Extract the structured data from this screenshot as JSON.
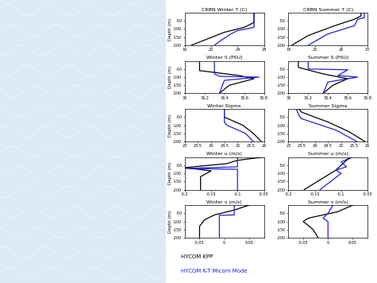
{
  "chart_data": [
    {
      "type": "line",
      "title": "CRBN Winter T (C)",
      "ylabel": "Depth (m)",
      "xlim": [
        16,
        28
      ],
      "xticks": [
        16,
        20,
        24,
        28
      ],
      "ylim": [
        -200,
        0
      ],
      "yticks": [
        -200,
        -150,
        -100,
        -50
      ],
      "series": [
        {
          "color": "#000000",
          "x": [
            26.5,
            26.5,
            25,
            22,
            19.5,
            17
          ],
          "y": [
            0,
            -60,
            -90,
            -120,
            -160,
            -200
          ]
        },
        {
          "color": "#2020e0",
          "x": [
            26.5,
            26.5,
            24,
            23,
            21.5,
            20.5
          ],
          "y": [
            0,
            -90,
            -110,
            -130,
            -170,
            -200
          ]
        }
      ]
    },
    {
      "type": "line",
      "title": "CRBN Summer T (C)",
      "xlim": [
        18,
        30
      ],
      "xticks": [
        18,
        22,
        26,
        30
      ],
      "ylim": [
        -200,
        0
      ],
      "yticks": [
        -200,
        -150,
        -100,
        -50
      ],
      "series": [
        {
          "color": "#000000",
          "x": [
            29,
            29,
            28,
            25,
            21,
            18.5
          ],
          "y": [
            0,
            -20,
            -40,
            -80,
            -140,
            -200
          ]
        },
        {
          "color": "#2020e0",
          "x": [
            29.5,
            29.5,
            28.5,
            28,
            24,
            21
          ],
          "y": [
            0,
            -30,
            -40,
            -80,
            -130,
            -200
          ]
        }
      ]
    },
    {
      "type": "line",
      "title": "Winter S (PSU)",
      "ylabel": "Depth (m)",
      "xlim": [
        36,
        36.8
      ],
      "xticks": [
        36,
        36.2,
        36.4,
        36.6,
        36.8
      ],
      "ylim": [
        -200,
        0
      ],
      "yticks": [
        -200,
        -150,
        -100,
        -50
      ],
      "series": [
        {
          "color": "#000000",
          "x": [
            36.15,
            36.15,
            36.55,
            36.7,
            36.45,
            36.35
          ],
          "y": [
            0,
            -60,
            -90,
            -110,
            -150,
            -200
          ]
        },
        {
          "color": "#2020e0",
          "x": [
            36.3,
            36.3,
            36.35,
            36.75,
            36.4,
            36.35
          ],
          "y": [
            0,
            -80,
            -95,
            -100,
            -120,
            -200
          ]
        }
      ]
    },
    {
      "type": "line",
      "title": "Summer S (PSU)",
      "xlim": [
        36,
        36.8
      ],
      "xticks": [
        36,
        36.2,
        36.4,
        36.6,
        36.8
      ],
      "ylim": [
        -200,
        0
      ],
      "yticks": [
        -200,
        -150,
        -100,
        -50
      ],
      "series": [
        {
          "color": "#000000",
          "x": [
            36.1,
            36.1,
            36.35,
            36.6,
            36.45,
            36.35
          ],
          "y": [
            0,
            -40,
            -80,
            -110,
            -150,
            -200
          ]
        },
        {
          "color": "#2020e0",
          "x": [
            36.2,
            36.2,
            36.6,
            36.5,
            36.7,
            36.4,
            36.35
          ],
          "y": [
            0,
            -50,
            -55,
            -90,
            -100,
            -130,
            -200
          ]
        }
      ]
    },
    {
      "type": "line",
      "title": "Winter Sigma",
      "ylabel": "Depth (m)",
      "xlim": [
        23,
        26
      ],
      "xticks": [
        23,
        23.5,
        24,
        24.5,
        25,
        25.5,
        26
      ],
      "ylim": [
        -200,
        0
      ],
      "yticks": [
        -200,
        -150,
        -100,
        -50
      ],
      "series": [
        {
          "color": "#000000",
          "x": [
            24.5,
            24.5,
            25.2,
            25.6,
            25.9
          ],
          "y": [
            0,
            -50,
            -100,
            -150,
            -200
          ]
        },
        {
          "color": "#2020e0",
          "x": [
            24.5,
            24.5,
            24.6,
            25.3,
            25.6
          ],
          "y": [
            0,
            -80,
            -100,
            -150,
            -200
          ]
        }
      ]
    },
    {
      "type": "line",
      "title": "Summer Sigma",
      "xlim": [
        23,
        26
      ],
      "xticks": [
        23,
        23.5,
        24,
        24.5,
        25,
        25.5,
        26
      ],
      "ylim": [
        -200,
        0
      ],
      "yticks": [
        -200,
        -150,
        -100,
        -50
      ],
      "series": [
        {
          "color": "#000000",
          "x": [
            23.4,
            23.5,
            24.5,
            25.3,
            25.9
          ],
          "y": [
            0,
            -20,
            -80,
            -140,
            -200
          ]
        },
        {
          "color": "#2020e0",
          "x": [
            23.3,
            23.4,
            23.5,
            24.8,
            25.6
          ],
          "y": [
            0,
            -40,
            -60,
            -130,
            -200
          ]
        }
      ]
    },
    {
      "type": "line",
      "title": "Winter u (m/s)",
      "ylabel": "Depth (m)",
      "xlim": [
        -0.2,
        -0.05
      ],
      "xticks": [
        -0.2,
        -0.15,
        -0.1,
        -0.05
      ],
      "ylim": [
        -200,
        0
      ],
      "yticks": [
        -200,
        -150,
        -100,
        -50
      ],
      "series": [
        {
          "color": "#000000",
          "x": [
            -0.05,
            -0.1,
            -0.12,
            -0.2,
            -0.15,
            -0.17,
            -0.17
          ],
          "y": [
            0,
            -20,
            -40,
            -65,
            -85,
            -120,
            -200
          ]
        },
        {
          "color": "#2020e0",
          "x": [
            -0.1,
            -0.1,
            -0.2,
            -0.1,
            -0.1
          ],
          "y": [
            0,
            -60,
            -70,
            -75,
            -200
          ]
        }
      ]
    },
    {
      "type": "line",
      "title": "Summer u (m/s)",
      "xlim": [
        -0.2,
        -0.05
      ],
      "xticks": [
        -0.2,
        -0.15,
        -0.1,
        -0.05
      ],
      "ylim": [
        -200,
        0
      ],
      "yticks": [
        -200,
        -150,
        -100,
        -50
      ],
      "series": [
        {
          "color": "#000000",
          "x": [
            -0.08,
            -0.09,
            -0.1,
            -0.11,
            -0.13,
            -0.17
          ],
          "y": [
            0,
            -20,
            -50,
            -80,
            -120,
            -200
          ]
        },
        {
          "color": "#2020e0",
          "x": [
            -0.08,
            -0.1,
            -0.09,
            -0.11,
            -0.1,
            -0.12,
            -0.14
          ],
          "y": [
            0,
            -30,
            -60,
            -80,
            -100,
            -150,
            -200
          ]
        }
      ]
    },
    {
      "type": "line",
      "title": "Winter v (m/s)",
      "ylabel": "Depth (m)",
      "xlim": [
        -0.08,
        0.08
      ],
      "xticks": [
        -0.05,
        0,
        0.05
      ],
      "ylim": [
        -200,
        0
      ],
      "yticks": [
        -200,
        -150,
        -100,
        -50
      ],
      "series": [
        {
          "color": "#000000",
          "x": [
            0.05,
            0.02,
            -0.02,
            -0.04,
            -0.05,
            -0.05
          ],
          "y": [
            0,
            -30,
            -60,
            -90,
            -130,
            -200
          ]
        },
        {
          "color": "#2020e0",
          "x": [
            0.02,
            0.02,
            -0.01,
            -0.01
          ],
          "y": [
            0,
            -60,
            -62,
            -200
          ]
        }
      ]
    },
    {
      "type": "line",
      "title": "Summer v (m/s)",
      "xlim": [
        -0.08,
        0.08
      ],
      "xticks": [
        -0.05,
        0,
        0.05
      ],
      "ylim": [
        -200,
        0
      ],
      "yticks": [
        -200,
        -150,
        -100,
        -50
      ],
      "series": [
        {
          "color": "#000000",
          "x": [
            0.05,
            0.02,
            -0.04,
            -0.05,
            -0.03,
            -0.02
          ],
          "y": [
            0,
            -40,
            -80,
            -100,
            -150,
            -200
          ]
        },
        {
          "color": "#2020e0",
          "x": [
            0.01,
            0,
            -0.01,
            0,
            0
          ],
          "y": [
            0,
            -50,
            -80,
            -100,
            -200
          ]
        }
      ]
    }
  ],
  "annotations": [
    {
      "text": "HYCOM KPP",
      "color": "#000000"
    },
    {
      "text": "HYCOM K-T Micom Mode",
      "color": "#2020e0"
    }
  ]
}
